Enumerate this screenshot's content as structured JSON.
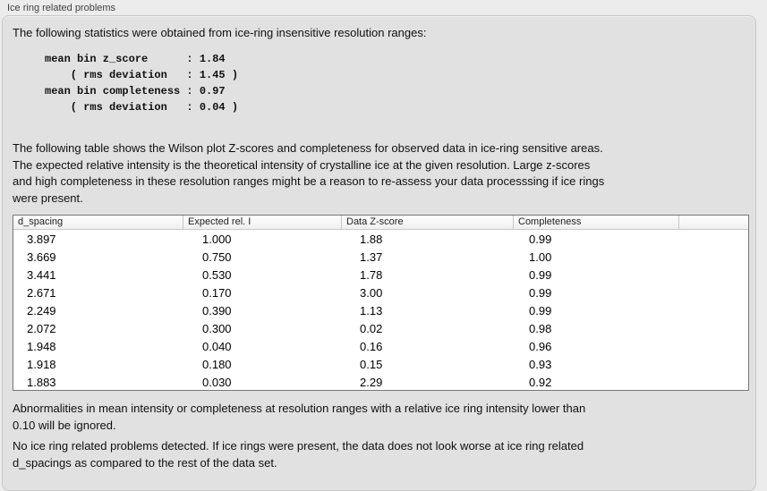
{
  "panel": {
    "title": "Ice ring related problems"
  },
  "intro_text": "The following statistics were obtained from ice-ring insensitive resolution ranges:",
  "stats_block": [
    "mean bin z_score      : 1.84",
    "    ( rms deviation   : 1.45 )",
    "mean bin completeness : 0.97",
    "    ( rms deviation   : 0.04 )"
  ],
  "description_lines": [
    "The following table shows the Wilson plot Z-scores and completeness for observed data in ice-ring sensitive areas.",
    "The expected relative intensity is the theoretical intensity of crystalline ice at the given resolution. Large z-scores",
    "and high completeness in these resolution ranges might be a reason to re-assess your data processsing if ice rings",
    "were present."
  ],
  "table": {
    "headers": [
      "d_spacing",
      "Expected rel. I",
      "Data Z-score",
      "Completeness",
      ""
    ],
    "rows": [
      [
        "3.897",
        "1.000",
        "1.88",
        "0.99"
      ],
      [
        "3.669",
        "0.750",
        "1.37",
        "1.00"
      ],
      [
        "3.441",
        "0.530",
        "1.78",
        "0.99"
      ],
      [
        "2.671",
        "0.170",
        "3.00",
        "0.99"
      ],
      [
        "2.249",
        "0.390",
        "1.13",
        "0.99"
      ],
      [
        "2.072",
        "0.300",
        "0.02",
        "0.98"
      ],
      [
        "1.948",
        "0.040",
        "0.16",
        "0.96"
      ],
      [
        "1.918",
        "0.180",
        "0.15",
        "0.93"
      ],
      [
        "1.883",
        "0.030",
        "2.29",
        "0.92"
      ]
    ]
  },
  "note_lines": [
    "Abnormalities in mean intensity or completeness at resolution ranges with a relative ice ring intensity lower than",
    "0.10 will be ignored."
  ],
  "conclusion_lines": [
    "No ice ring related problems detected. If ice rings were present, the data does not look worse at ice ring related",
    "d_spacings as compared to the rest of the data set."
  ]
}
